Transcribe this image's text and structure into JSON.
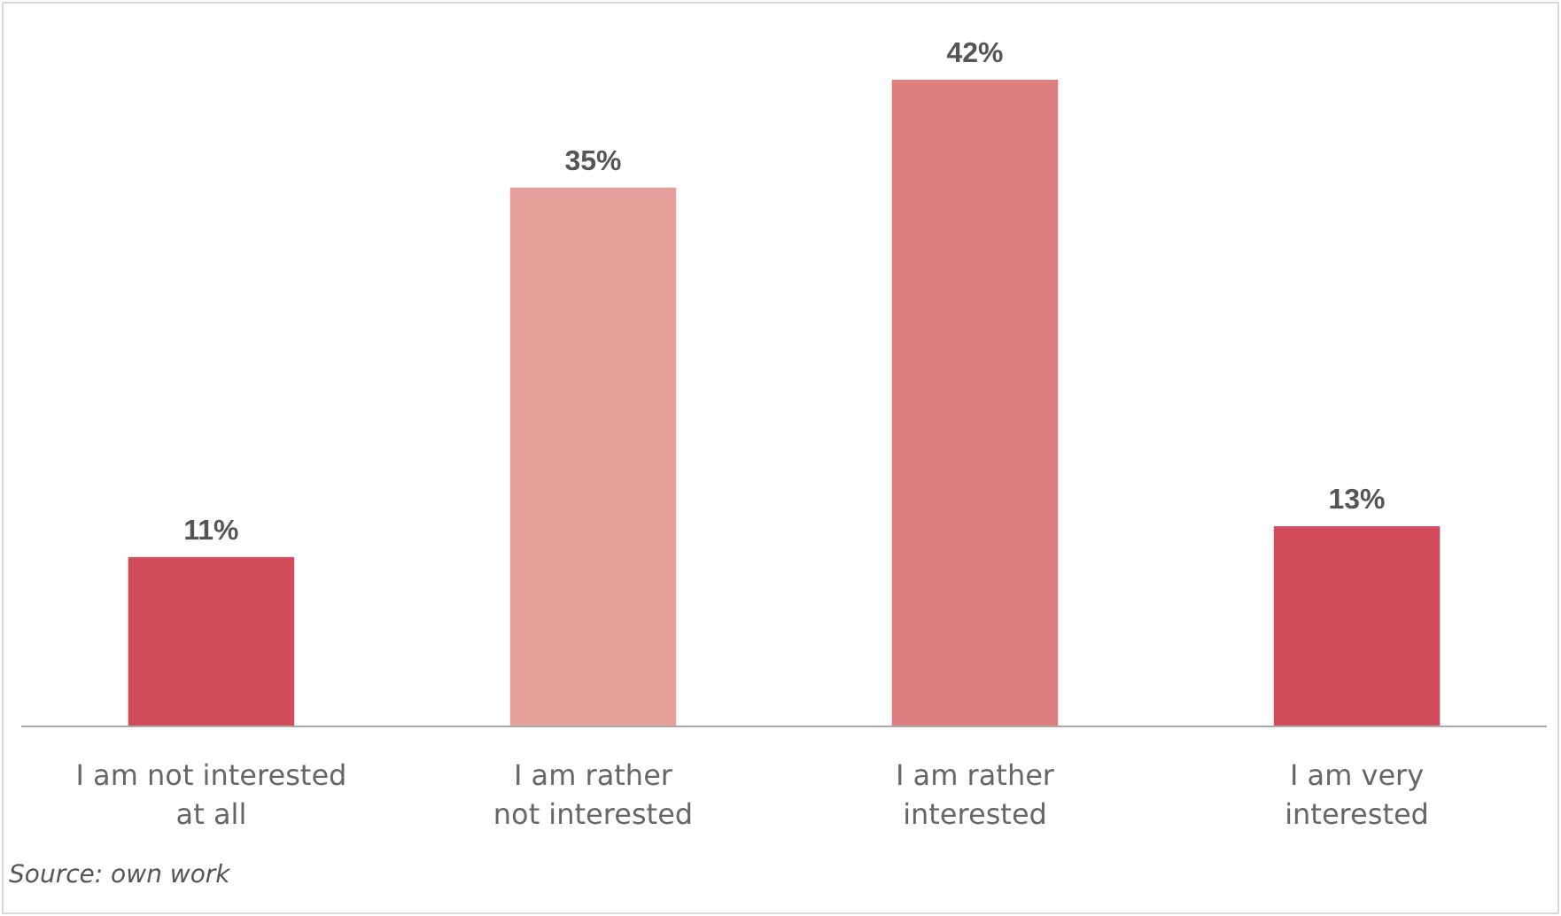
{
  "chart_data": {
    "type": "bar",
    "categories": [
      "I am not interested\nat all",
      "I am rather\nnot interested",
      "I am rather\ninterested",
      "I am very\ninterested"
    ],
    "values": [
      11,
      35,
      42,
      13
    ],
    "colors": [
      "#d14b5a",
      "#e6a19d",
      "#dd7f7e",
      "#d14b5a"
    ],
    "value_labels": [
      "11%",
      "35%",
      "42%",
      "13%"
    ],
    "annotations": [
      "Source: own work"
    ]
  }
}
